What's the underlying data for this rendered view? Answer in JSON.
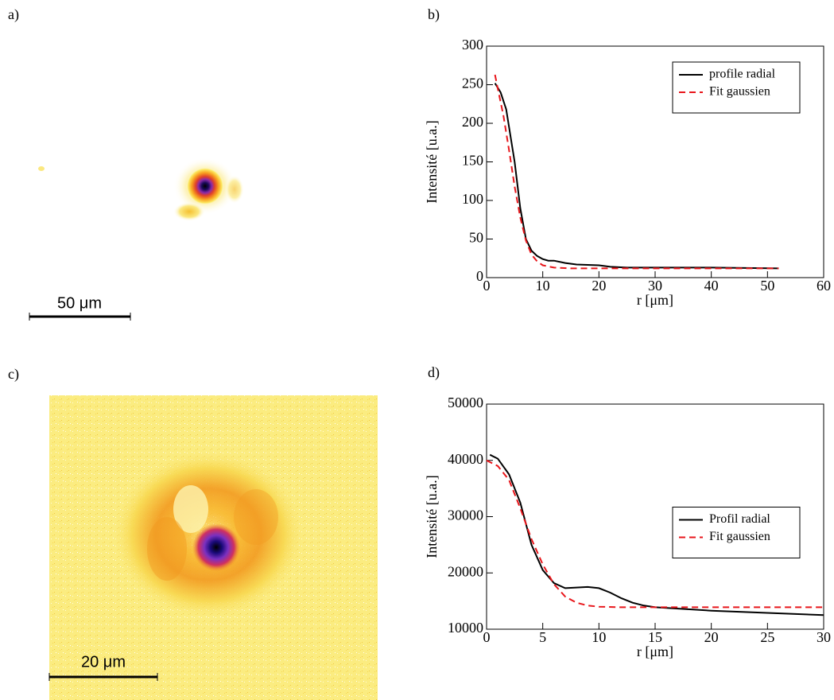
{
  "images": [
    {
      "label": "a)",
      "scale_bar": "50 μm"
    },
    {
      "label": "c)",
      "scale_bar": "20 μm"
    }
  ],
  "chart_data": [
    {
      "type": "line",
      "label": "b)",
      "x_label": "r [μm]",
      "y_label": "Intensité [u.a.]",
      "xlim": [
        0,
        60
      ],
      "ylim": [
        0,
        300
      ],
      "xticks": [
        0,
        10,
        20,
        30,
        40,
        50,
        60
      ],
      "yticks": [
        0,
        50,
        100,
        150,
        200,
        250,
        300
      ],
      "legend": "upper right",
      "series": [
        {
          "name": "profile radial",
          "color": "#000000",
          "style": "solid",
          "x": [
            1.5,
            2.5,
            3.5,
            5,
            6,
            7,
            8,
            9,
            10,
            11,
            12,
            14,
            16,
            20,
            22,
            25,
            30,
            40,
            52
          ],
          "values": [
            252,
            240,
            218,
            150,
            90,
            50,
            35,
            28,
            24,
            22,
            22,
            19,
            17,
            16,
            14,
            13,
            13,
            13,
            12
          ]
        },
        {
          "name": "Fit gaussien",
          "color": "#e8161b",
          "style": "dashed",
          "x": [
            1.5,
            2,
            3,
            4,
            5,
            6,
            7,
            8,
            9,
            10,
            12,
            15,
            20,
            30,
            40,
            52
          ],
          "values": [
            263,
            245,
            210,
            165,
            118,
            78,
            48,
            30,
            21,
            16,
            13,
            12,
            12,
            12,
            12,
            12
          ]
        }
      ]
    },
    {
      "type": "line",
      "label": "d)",
      "x_label": "r [μm]",
      "y_label": "Intensité [u.a.]",
      "xlim": [
        0,
        30
      ],
      "ylim": [
        10000,
        50000
      ],
      "xticks": [
        0,
        5,
        10,
        15,
        20,
        25,
        30
      ],
      "yticks": [
        10000,
        20000,
        30000,
        40000,
        50000
      ],
      "legend": "center right",
      "series": [
        {
          "name": "Profil radial",
          "color": "#000000",
          "style": "solid",
          "x": [
            0.3,
            1,
            2,
            3,
            4,
            5,
            6,
            7,
            8,
            9,
            10,
            11,
            12,
            13,
            14,
            15,
            20,
            25,
            30
          ],
          "values": [
            41000,
            40300,
            37500,
            32500,
            25000,
            20500,
            18200,
            17300,
            17400,
            17500,
            17300,
            16500,
            15500,
            14700,
            14200,
            13900,
            13300,
            12900,
            12500
          ]
        },
        {
          "name": "Fit gaussien",
          "color": "#e8161b",
          "style": "dashed",
          "x": [
            0,
            1,
            2,
            3,
            4,
            5,
            6,
            7,
            8,
            9,
            10,
            12,
            15,
            30
          ],
          "values": [
            40000,
            39000,
            36500,
            31500,
            26000,
            21500,
            18000,
            15800,
            14700,
            14200,
            14000,
            13900,
            13900,
            13900
          ]
        }
      ]
    }
  ]
}
